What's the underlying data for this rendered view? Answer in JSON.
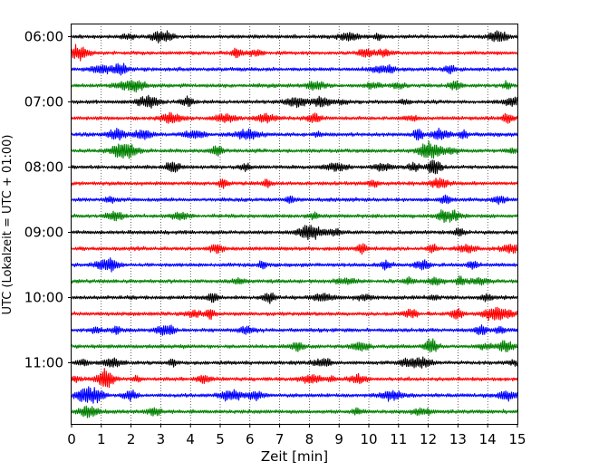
{
  "chart_data": {
    "type": "line",
    "subtype": "helicorder",
    "xlabel": "Zeit  [min]",
    "ylabel": "UTC (Lokalzeit = UTC + 01:00)",
    "xlim": [
      0,
      15
    ],
    "x_ticks": [
      "0",
      "1",
      "2",
      "3",
      "4",
      "5",
      "6",
      "7",
      "8",
      "9",
      "10",
      "11",
      "12",
      "13",
      "14",
      "15"
    ],
    "hour_labels": [
      "06:00",
      "07:00",
      "08:00",
      "09:00",
      "10:00",
      "11:00"
    ],
    "trace_interval_minutes": 15,
    "trace_count": 24,
    "trace_colors": [
      "#000000",
      "#ff0000",
      "#0000ff",
      "#008000"
    ],
    "vertical_grid": "dotted at every minute",
    "rows": [
      {
        "start": "06:00",
        "color": "#000000"
      },
      {
        "start": "06:15",
        "color": "#ff0000"
      },
      {
        "start": "06:30",
        "color": "#0000ff"
      },
      {
        "start": "06:45",
        "color": "#008000"
      },
      {
        "start": "07:00",
        "color": "#000000"
      },
      {
        "start": "07:15",
        "color": "#ff0000"
      },
      {
        "start": "07:30",
        "color": "#0000ff"
      },
      {
        "start": "07:45",
        "color": "#008000"
      },
      {
        "start": "08:00",
        "color": "#000000"
      },
      {
        "start": "08:15",
        "color": "#ff0000"
      },
      {
        "start": "08:30",
        "color": "#0000ff"
      },
      {
        "start": "08:45",
        "color": "#008000"
      },
      {
        "start": "09:00",
        "color": "#000000"
      },
      {
        "start": "09:15",
        "color": "#ff0000"
      },
      {
        "start": "09:30",
        "color": "#0000ff"
      },
      {
        "start": "09:45",
        "color": "#008000"
      },
      {
        "start": "10:00",
        "color": "#000000"
      },
      {
        "start": "10:15",
        "color": "#ff0000"
      },
      {
        "start": "10:30",
        "color": "#0000ff"
      },
      {
        "start": "10:45",
        "color": "#008000"
      },
      {
        "start": "11:00",
        "color": "#000000"
      },
      {
        "start": "11:15",
        "color": "#ff0000"
      },
      {
        "start": "11:30",
        "color": "#0000ff"
      },
      {
        "start": "11:45",
        "color": "#008000"
      }
    ]
  }
}
